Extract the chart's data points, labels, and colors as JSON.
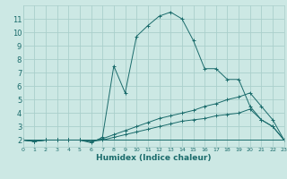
{
  "xlabel": "Humidex (Indice chaleur)",
  "bg_color": "#cce8e4",
  "grid_color": "#aacfcb",
  "line_color": "#1a6b6b",
  "series": [
    {
      "x": [
        0,
        1,
        2,
        3,
        4,
        5,
        6,
        7,
        8,
        9,
        10,
        11,
        12,
        13,
        14,
        15,
        16,
        17,
        18,
        19,
        20,
        21,
        22,
        23
      ],
      "y": [
        2,
        1.9,
        2,
        2,
        2,
        2,
        1.8,
        2.2,
        7.5,
        5.5,
        9.7,
        10.5,
        11.2,
        11.5,
        11.0,
        9.4,
        7.3,
        7.3,
        6.5,
        6.5,
        4.5,
        3.5,
        3.0,
        2.0
      ]
    },
    {
      "x": [
        0,
        1,
        2,
        3,
        4,
        5,
        6,
        7,
        8,
        9,
        10,
        11,
        12,
        13,
        14,
        15,
        16,
        17,
        18,
        19,
        20,
        21,
        22,
        23
      ],
      "y": [
        2,
        1.9,
        2,
        2,
        2,
        2,
        1.9,
        2.1,
        2.4,
        2.7,
        3.0,
        3.3,
        3.6,
        3.8,
        4.0,
        4.2,
        4.5,
        4.7,
        5.0,
        5.2,
        5.5,
        4.5,
        3.5,
        2.0
      ]
    },
    {
      "x": [
        0,
        23
      ],
      "y": [
        2,
        2
      ]
    },
    {
      "x": [
        0,
        1,
        2,
        3,
        4,
        5,
        6,
        7,
        8,
        9,
        10,
        11,
        12,
        13,
        14,
        15,
        16,
        17,
        18,
        19,
        20,
        21,
        22,
        23
      ],
      "y": [
        2,
        1.9,
        2,
        2,
        2,
        2,
        1.9,
        2.0,
        2.2,
        2.4,
        2.6,
        2.8,
        3.0,
        3.2,
        3.4,
        3.5,
        3.6,
        3.8,
        3.9,
        4.0,
        4.3,
        3.5,
        3.0,
        2.0
      ]
    }
  ],
  "xlim": [
    0,
    23
  ],
  "ylim": [
    1.5,
    12.0
  ],
  "yticks": [
    2,
    3,
    4,
    5,
    6,
    7,
    8,
    9,
    10,
    11
  ],
  "xticks": [
    0,
    1,
    2,
    3,
    4,
    5,
    6,
    7,
    8,
    9,
    10,
    11,
    12,
    13,
    14,
    15,
    16,
    17,
    18,
    19,
    20,
    21,
    22,
    23
  ]
}
